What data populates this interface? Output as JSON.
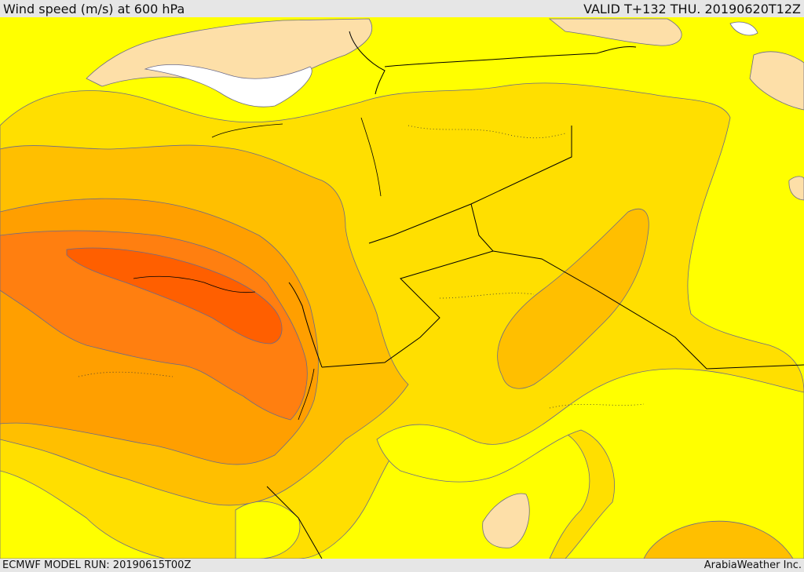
{
  "header": {
    "title": "Wind speed (m/s) at 600 hPa",
    "valid": "VALID T+132 THU. 20190620T12Z"
  },
  "footer": {
    "model_run": "ECMWF MODEL RUN: 20190615T00Z",
    "credit": "ArabiaWeather Inc."
  },
  "colors": {
    "calm": "#ffffff",
    "very_light": "#fddfa8",
    "light": "#ffff00",
    "moderate": "#ffdf00",
    "fresh": "#ffbf00",
    "strong": "#ff9f00",
    "very_strong": "#ff7f10",
    "max": "#ff5f00",
    "contour": "#6a6a8a",
    "border": "#000000"
  }
}
